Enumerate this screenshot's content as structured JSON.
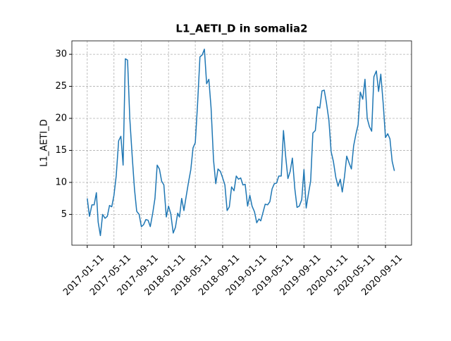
{
  "chart_data": {
    "type": "line",
    "title": "L1_AETI_D in somalia2",
    "y_label": "L1_AETI_D",
    "color": "#1f77b4",
    "grid": true,
    "x": [
      "2017-01-11",
      "2017-01-21",
      "2017-02-01",
      "2017-02-11",
      "2017-02-21",
      "2017-03-01",
      "2017-03-11",
      "2017-03-21",
      "2017-04-01",
      "2017-04-11",
      "2017-04-21",
      "2017-05-01",
      "2017-05-11",
      "2017-05-21",
      "2017-06-01",
      "2017-06-11",
      "2017-06-21",
      "2017-07-01",
      "2017-07-11",
      "2017-07-21",
      "2017-08-01",
      "2017-08-11",
      "2017-08-21",
      "2017-09-01",
      "2017-09-11",
      "2017-09-21",
      "2017-10-01",
      "2017-10-11",
      "2017-10-21",
      "2017-11-01",
      "2017-11-11",
      "2017-11-21",
      "2017-12-01",
      "2017-12-11",
      "2017-12-21",
      "2018-01-01",
      "2018-01-11",
      "2018-01-21",
      "2018-02-01",
      "2018-02-11",
      "2018-02-21",
      "2018-03-01",
      "2018-03-11",
      "2018-03-21",
      "2018-04-01",
      "2018-04-11",
      "2018-04-21",
      "2018-05-01",
      "2018-05-11",
      "2018-05-21",
      "2018-06-01",
      "2018-06-11",
      "2018-06-21",
      "2018-07-01",
      "2018-07-11",
      "2018-07-21",
      "2018-08-01",
      "2018-08-11",
      "2018-08-21",
      "2018-09-01",
      "2018-09-11",
      "2018-09-21",
      "2018-10-01",
      "2018-10-11",
      "2018-10-21",
      "2018-11-01",
      "2018-11-11",
      "2018-11-21",
      "2018-12-01",
      "2018-12-11",
      "2018-12-21",
      "2019-01-01",
      "2019-01-11",
      "2019-01-21",
      "2019-02-01",
      "2019-02-11",
      "2019-02-21",
      "2019-03-01",
      "2019-03-11",
      "2019-03-21",
      "2019-04-01",
      "2019-04-11",
      "2019-04-21",
      "2019-05-01",
      "2019-05-11",
      "2019-05-21",
      "2019-06-01",
      "2019-06-11",
      "2019-06-21",
      "2019-07-01",
      "2019-07-11",
      "2019-07-21",
      "2019-08-01",
      "2019-08-11",
      "2019-08-21",
      "2019-09-01",
      "2019-09-11",
      "2019-09-21",
      "2019-10-01",
      "2019-10-11",
      "2019-10-21",
      "2019-11-01",
      "2019-11-11",
      "2019-11-21",
      "2019-12-01",
      "2019-12-11",
      "2019-12-21",
      "2020-01-01",
      "2020-01-11",
      "2020-01-21",
      "2020-02-01",
      "2020-02-11",
      "2020-02-21",
      "2020-03-01",
      "2020-03-11",
      "2020-03-21",
      "2020-04-01",
      "2020-04-11",
      "2020-04-21",
      "2020-05-01",
      "2020-05-11",
      "2020-05-21",
      "2020-06-01",
      "2020-06-11",
      "2020-06-21",
      "2020-07-01",
      "2020-07-11",
      "2020-07-21",
      "2020-08-01",
      "2020-08-11",
      "2020-08-21",
      "2020-09-01",
      "2020-09-11",
      "2020-09-21",
      "2020-10-01",
      "2020-10-11",
      "2020-10-21"
    ],
    "values": [
      7.5,
      4.7,
      6.5,
      6.5,
      8.4,
      3.8,
      1.7,
      5.0,
      4.4,
      4.7,
      6.4,
      6.2,
      8.0,
      11,
      16.5,
      17.2,
      12.7,
      29.3,
      29.1,
      20,
      14,
      9,
      5.5,
      5,
      3.1,
      3.4,
      4.2,
      4.1,
      3.1,
      5.2,
      7.5,
      12.7,
      12.1,
      10.2,
      9.6,
      4.6,
      6.3,
      5.1,
      2.1,
      3.0,
      5.2,
      4.6,
      7.5,
      5.6,
      8.0,
      10.1,
      12,
      15.4,
      16.2,
      22,
      29.6,
      29.9,
      30.8,
      25.4,
      26.1,
      21.6,
      13.5,
      9.8,
      12.1,
      11.7,
      10.7,
      9.6,
      5.6,
      6.2,
      9.3,
      8.7,
      11.0,
      10.5,
      10.7,
      9.6,
      9.7,
      6.3,
      8.0,
      6.3,
      5.4,
      3.7,
      4.3,
      4.0,
      5.3,
      6.6,
      6.5,
      7.0,
      9.0,
      9.8,
      9.9,
      11,
      11,
      18.1,
      14,
      10.6,
      11.7,
      13.8,
      9.0,
      6.1,
      6.3,
      7.3,
      12,
      6.0,
      8.2,
      10.2,
      17.7,
      18.1,
      21.8,
      21.6,
      24.3,
      24.4,
      22.4,
      19.7,
      14.8,
      13.3,
      10.8,
      9.4,
      10.5,
      8.5,
      10.9,
      14.1,
      13,
      12.1,
      15.7,
      17.5,
      19.0,
      24.1,
      23.0,
      26.1,
      20,
      18.7,
      18.0,
      26.5,
      27.4,
      24.2,
      26.9,
      22.2,
      17.0,
      17.6,
      16.8,
      13.3,
      11.8
    ],
    "xlim": [
      "2016-11-03",
      "2021-01-06"
    ],
    "xticks": [
      "2017-01-11",
      "2017-05-11",
      "2017-09-11",
      "2018-01-11",
      "2018-05-11",
      "2018-09-11",
      "2019-01-11",
      "2019-05-11",
      "2019-09-11",
      "2020-01-11",
      "2020-05-11",
      "2020-09-11"
    ],
    "ylim": [
      0.2,
      32.1
    ],
    "yticks": [
      5,
      10,
      15,
      20,
      25,
      30
    ]
  }
}
